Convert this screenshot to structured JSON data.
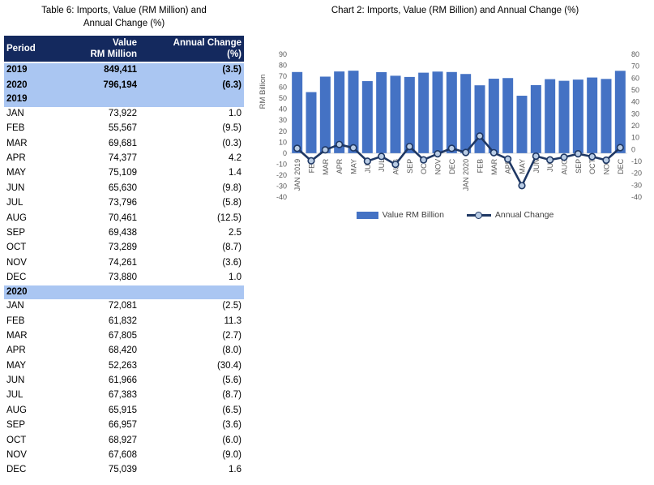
{
  "table": {
    "title_line1": "Table 6: Imports, Value (RM Million) and",
    "title_line2": "Annual Change (%)",
    "header": {
      "period": "Period",
      "value_line1": "Value",
      "value_line2": "RM Million",
      "change_line1": "Annual Change",
      "change_line2": "(%)"
    },
    "summary_rows": [
      {
        "period": "2019",
        "value": "849,411",
        "change": "(3.5)"
      },
      {
        "period": "2020",
        "value": "796,194",
        "change": "(6.3)"
      }
    ],
    "sections": [
      {
        "year": "2019",
        "rows": [
          {
            "m": "JAN",
            "v": "73,922",
            "c": "1.0"
          },
          {
            "m": "FEB",
            "v": "55,567",
            "c": "(9.5)"
          },
          {
            "m": "MAR",
            "v": "69,681",
            "c": "(0.3)"
          },
          {
            "m": "APR",
            "v": "74,377",
            "c": "4.2"
          },
          {
            "m": "MAY",
            "v": "75,109",
            "c": "1.4"
          },
          {
            "m": "JUN",
            "v": "65,630",
            "c": "(9.8)"
          },
          {
            "m": "JUL",
            "v": "73,796",
            "c": "(5.8)"
          },
          {
            "m": "AUG",
            "v": "70,461",
            "c": "(12.5)"
          },
          {
            "m": "SEP",
            "v": "69,438",
            "c": "2.5"
          },
          {
            "m": "OCT",
            "v": "73,289",
            "c": "(8.7)"
          },
          {
            "m": "NOV",
            "v": "74,261",
            "c": "(3.6)"
          },
          {
            "m": "DEC",
            "v": "73,880",
            "c": "1.0"
          }
        ]
      },
      {
        "year": "2020",
        "rows": [
          {
            "m": "JAN",
            "v": "72,081",
            "c": "(2.5)"
          },
          {
            "m": "FEB",
            "v": "61,832",
            "c": "11.3"
          },
          {
            "m": "MAR",
            "v": "67,805",
            "c": "(2.7)"
          },
          {
            "m": "APR",
            "v": "68,420",
            "c": "(8.0)"
          },
          {
            "m": "MAY",
            "v": "52,263",
            "c": "(30.4)"
          },
          {
            "m": "JUN",
            "v": "61,966",
            "c": "(5.6)"
          },
          {
            "m": "JUL",
            "v": "67,383",
            "c": "(8.7)"
          },
          {
            "m": "AUG",
            "v": "65,915",
            "c": "(6.5)"
          },
          {
            "m": "SEP",
            "v": "66,957",
            "c": "(3.6)"
          },
          {
            "m": "OCT",
            "v": "68,927",
            "c": "(6.0)"
          },
          {
            "m": "NOV",
            "v": "67,608",
            "c": "(9.0)"
          },
          {
            "m": "DEC",
            "v": "75,039",
            "c": "1.6"
          }
        ]
      }
    ]
  },
  "chart": {
    "title": "Chart 2: Imports, Value (RM Billion) and Annual Change (%)"
  },
  "chart_data": {
    "type": "bar+line",
    "title": "Chart 2: Imports, Value (RM Billion) and Annual Change (%)",
    "categories": [
      "JAN 2019",
      "FEB",
      "MAR",
      "APR",
      "MAY",
      "JUN",
      "JUL",
      "AUG",
      "SEP",
      "OCT",
      "NOV",
      "DEC",
      "JAN 2020",
      "FEB",
      "MAR",
      "APR",
      "MAY",
      "JUN",
      "JUL",
      "AUG",
      "SEP",
      "OCT",
      "NOV",
      "DEC"
    ],
    "series": [
      {
        "name": "Value RM Billion",
        "type": "bar",
        "axis": "left",
        "values": [
          73.9,
          55.6,
          69.7,
          74.4,
          75.1,
          65.6,
          73.8,
          70.5,
          69.4,
          73.3,
          74.3,
          73.9,
          72.1,
          61.8,
          67.8,
          68.4,
          52.3,
          62.0,
          67.4,
          65.9,
          67.0,
          68.9,
          67.6,
          75.0
        ]
      },
      {
        "name": "Annual Change",
        "type": "line",
        "axis": "right",
        "values": [
          1.0,
          -9.5,
          -0.3,
          4.2,
          1.4,
          -9.8,
          -5.8,
          -12.5,
          2.5,
          -8.7,
          -3.6,
          1.0,
          -2.5,
          11.3,
          -2.7,
          -8.0,
          -30.4,
          -5.6,
          -8.7,
          -6.5,
          -3.6,
          -6.0,
          -9.0,
          1.6
        ]
      }
    ],
    "left_axis": {
      "label": "RM Billion",
      "min": -40,
      "max": 90,
      "step": 10
    },
    "right_axis": {
      "min": -40,
      "max": 80,
      "step": 10
    },
    "legend_position": "bottom",
    "grid": "zero-line-only",
    "colors": {
      "bar": "#4472C4",
      "line": "#1F3864",
      "marker_fill": "#B9CCE4",
      "axis_text": "#595959",
      "zero_line": "#D9D9D9",
      "table_header_bg": "#14295E",
      "table_band_bg": "#AAC6F2"
    }
  }
}
